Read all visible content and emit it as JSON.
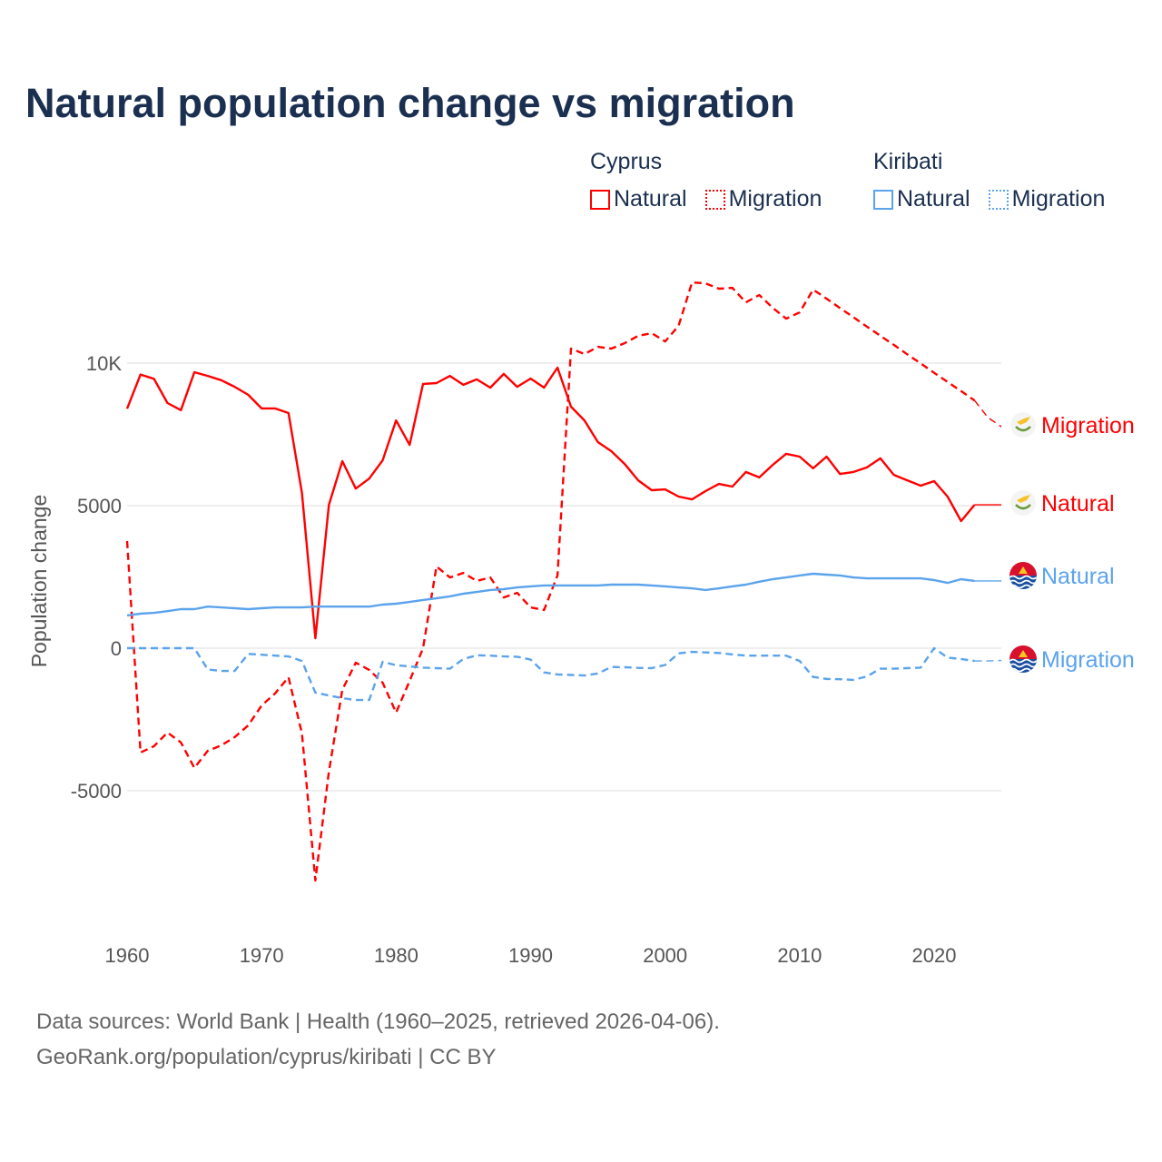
{
  "chart_data": {
    "type": "line",
    "title": "Natural population change vs migration",
    "xlabel": "",
    "ylabel": "Population change",
    "xlim": [
      1960,
      2025
    ],
    "ylim": [
      -9000,
      13000
    ],
    "grid": true,
    "x_ticks": [
      1960,
      1970,
      1980,
      1990,
      2000,
      2010,
      2020
    ],
    "x_tick_labels": [
      "1960",
      "1970",
      "1980",
      "1990",
      "2000",
      "2010",
      "2020"
    ],
    "y_ticks": [
      10000,
      5000,
      0,
      -5000
    ],
    "y_tick_labels": [
      "10K",
      "5000",
      "0",
      "-5000"
    ],
    "legend": {
      "placement": "top-right",
      "groups": [
        {
          "name": "Cyprus",
          "items": [
            "Natural",
            "Migration"
          ]
        },
        {
          "name": "Kiribati",
          "items": [
            "Natural",
            "Migration"
          ]
        }
      ]
    },
    "x": [
      1960,
      1961,
      1962,
      1963,
      1964,
      1965,
      1966,
      1967,
      1968,
      1969,
      1970,
      1971,
      1972,
      1973,
      1974,
      1975,
      1976,
      1977,
      1978,
      1979,
      1980,
      1981,
      1982,
      1983,
      1984,
      1985,
      1986,
      1987,
      1988,
      1989,
      1990,
      1991,
      1992,
      1993,
      1994,
      1995,
      1996,
      1997,
      1998,
      1999,
      2000,
      2001,
      2002,
      2003,
      2004,
      2005,
      2006,
      2007,
      2008,
      2009,
      2010,
      2011,
      2012,
      2013,
      2014,
      2015,
      2016,
      2017,
      2018,
      2019,
      2020,
      2021,
      2022,
      2023,
      2024,
      2025
    ],
    "series": [
      {
        "name": "Cyprus Natural",
        "country": "Cyprus",
        "kind": "Natural",
        "color": "#ff0000",
        "dash": false,
        "end_label": "Natural",
        "values": [
          8400,
          9600,
          9450,
          8600,
          8350,
          9680,
          9550,
          9400,
          9170,
          8890,
          8410,
          8410,
          8250,
          5450,
          350,
          5030,
          6560,
          5600,
          5950,
          6590,
          7990,
          7130,
          9270,
          9300,
          9550,
          9240,
          9430,
          9140,
          9620,
          9170,
          9460,
          9140,
          9840,
          8470,
          7990,
          7230,
          6910,
          6460,
          5890,
          5540,
          5570,
          5320,
          5220,
          5510,
          5760,
          5670,
          6180,
          5990,
          6430,
          6820,
          6720,
          6310,
          6720,
          6110,
          6180,
          6340,
          6660,
          6080,
          5890,
          5700,
          5860,
          5320,
          4460,
          5030,
          5030,
          5030
        ]
      },
      {
        "name": "Cyprus Migration",
        "country": "Cyprus",
        "kind": "Migration",
        "color": "#ff0000",
        "dash": true,
        "end_label": "Migration",
        "values": [
          3760,
          -3660,
          -3440,
          -2960,
          -3310,
          -4200,
          -3600,
          -3410,
          -3120,
          -2710,
          -2010,
          -1590,
          -1020,
          -2990,
          -8150,
          -4330,
          -1460,
          -510,
          -760,
          -1210,
          -2260,
          -1150,
          0,
          2870,
          2480,
          2640,
          2360,
          2480,
          1780,
          1940,
          1430,
          1340,
          2550,
          10510,
          10320,
          10570,
          10510,
          10700,
          10960,
          11050,
          10760,
          11310,
          12830,
          12800,
          12610,
          12640,
          12130,
          12390,
          11940,
          11560,
          11780,
          12580,
          12260,
          11930,
          11610,
          11280,
          10960,
          10640,
          10310,
          9990,
          9660,
          9340,
          9020,
          8690,
          8090,
          7770
        ]
      },
      {
        "name": "Kiribati Natural",
        "country": "Kiribati",
        "kind": "Natural",
        "color": "#5ba3ec",
        "dash": false,
        "end_label": "Natural",
        "values": [
          1150,
          1210,
          1240,
          1300,
          1370,
          1370,
          1460,
          1430,
          1400,
          1370,
          1400,
          1430,
          1430,
          1430,
          1460,
          1460,
          1460,
          1460,
          1460,
          1530,
          1560,
          1620,
          1690,
          1750,
          1820,
          1910,
          1970,
          2040,
          2070,
          2130,
          2170,
          2200,
          2200,
          2200,
          2200,
          2200,
          2230,
          2230,
          2230,
          2200,
          2170,
          2130,
          2100,
          2040,
          2100,
          2170,
          2230,
          2330,
          2420,
          2480,
          2550,
          2610,
          2580,
          2550,
          2480,
          2450,
          2450,
          2450,
          2450,
          2450,
          2390,
          2290,
          2420,
          2360,
          2360,
          2360
        ]
      },
      {
        "name": "Kiribati Migration",
        "country": "Kiribati",
        "kind": "Migration",
        "color": "#5ba3ec",
        "dash": true,
        "end_label": "Migration",
        "values": [
          0,
          0,
          0,
          0,
          0,
          0,
          -750,
          -800,
          -800,
          -200,
          -230,
          -260,
          -290,
          -450,
          -1560,
          -1660,
          -1750,
          -1820,
          -1820,
          -480,
          -600,
          -640,
          -680,
          -700,
          -720,
          -380,
          -250,
          -260,
          -290,
          -300,
          -400,
          -850,
          -920,
          -940,
          -960,
          -890,
          -660,
          -670,
          -690,
          -700,
          -590,
          -180,
          -130,
          -150,
          -170,
          -220,
          -260,
          -260,
          -260,
          -260,
          -450,
          -1010,
          -1080,
          -1090,
          -1110,
          -990,
          -720,
          -720,
          -700,
          -680,
          0,
          -330,
          -380,
          -450,
          -450,
          -430
        ]
      }
    ]
  },
  "footer": {
    "line1": "Data sources: World Bank | Health (1960–2025, retrieved 2026-04-06).",
    "line2": "GeoRank.org/population/cyprus/kiribati | CC BY"
  },
  "colors": {
    "cyprus": "#ff0000",
    "kiribati": "#5ba3ec",
    "title": "#1b2f50"
  }
}
